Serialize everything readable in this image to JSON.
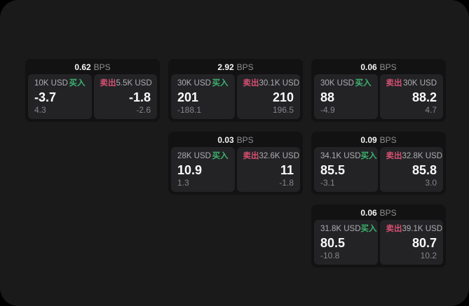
{
  "app": {
    "background": "#1a1a1b",
    "outer_background": "#000000"
  },
  "colors": {
    "buy_green": "#3cb46e",
    "sell_red": "#d65072",
    "card_bg": "#121213",
    "panel_bg": "#232326",
    "primary_text": "#fafafa",
    "muted_text": "#86868a"
  },
  "labels": {
    "buy": "买入",
    "sell": "卖出",
    "bps_unit": "BPS"
  },
  "cards": [
    {
      "bps": "0.62",
      "buy": {
        "amount": "10K USD",
        "price": "-3.7",
        "change": "4.3"
      },
      "sell": {
        "amount": "5.5K USD",
        "price": "-1.8",
        "change": "-2.6"
      }
    },
    {
      "bps": "2.92",
      "buy": {
        "amount": "30K USD",
        "price": "201",
        "change": "-188.1"
      },
      "sell": {
        "amount": "30.1K USD",
        "price": "210",
        "change": "196.5"
      }
    },
    {
      "bps": "0.06",
      "buy": {
        "amount": "30K USD",
        "price": "88",
        "change": "-4.9"
      },
      "sell": {
        "amount": "30K USD",
        "price": "88.2",
        "change": "4.7"
      }
    },
    {
      "bps": "0.03",
      "buy": {
        "amount": "28K USD",
        "price": "10.9",
        "change": "1.3"
      },
      "sell": {
        "amount": "32.6K USD",
        "price": "11",
        "change": "-1.8"
      }
    },
    {
      "bps": "0.09",
      "buy": {
        "amount": "34.1K USD",
        "price": "85.5",
        "change": "-3.1"
      },
      "sell": {
        "amount": "32.8K USD",
        "price": "85.8",
        "change": "3.0"
      }
    },
    {
      "bps": "0.06",
      "buy": {
        "amount": "31.8K USD",
        "price": "80.5",
        "change": "-10.8"
      },
      "sell": {
        "amount": "39.1K USD",
        "price": "80.7",
        "change": "10.2"
      }
    }
  ]
}
